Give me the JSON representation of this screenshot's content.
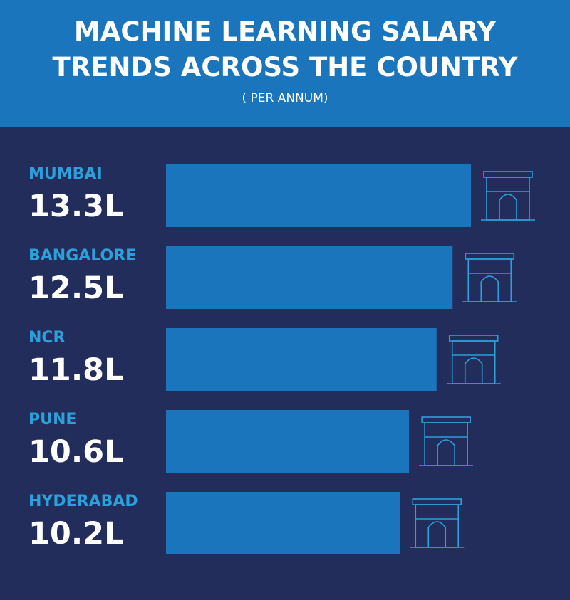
{
  "chart_data": {
    "type": "bar",
    "orientation": "horizontal",
    "title": [
      "MACHINE LEARNING SALARY",
      "TRENDS ACROSS THE COUNTRY"
    ],
    "subtitle": "( PER ANNUM)",
    "categories": [
      "MUMBAI",
      "BANGALORE",
      "NCR",
      "PUNE",
      "HYDERABAD"
    ],
    "values": [
      13.3,
      12.5,
      11.8,
      10.6,
      10.2
    ],
    "value_labels": [
      "13.3L",
      "12.5L",
      "11.8L",
      "10.6L",
      "10.2L"
    ],
    "color": "#1b75bc"
  }
}
